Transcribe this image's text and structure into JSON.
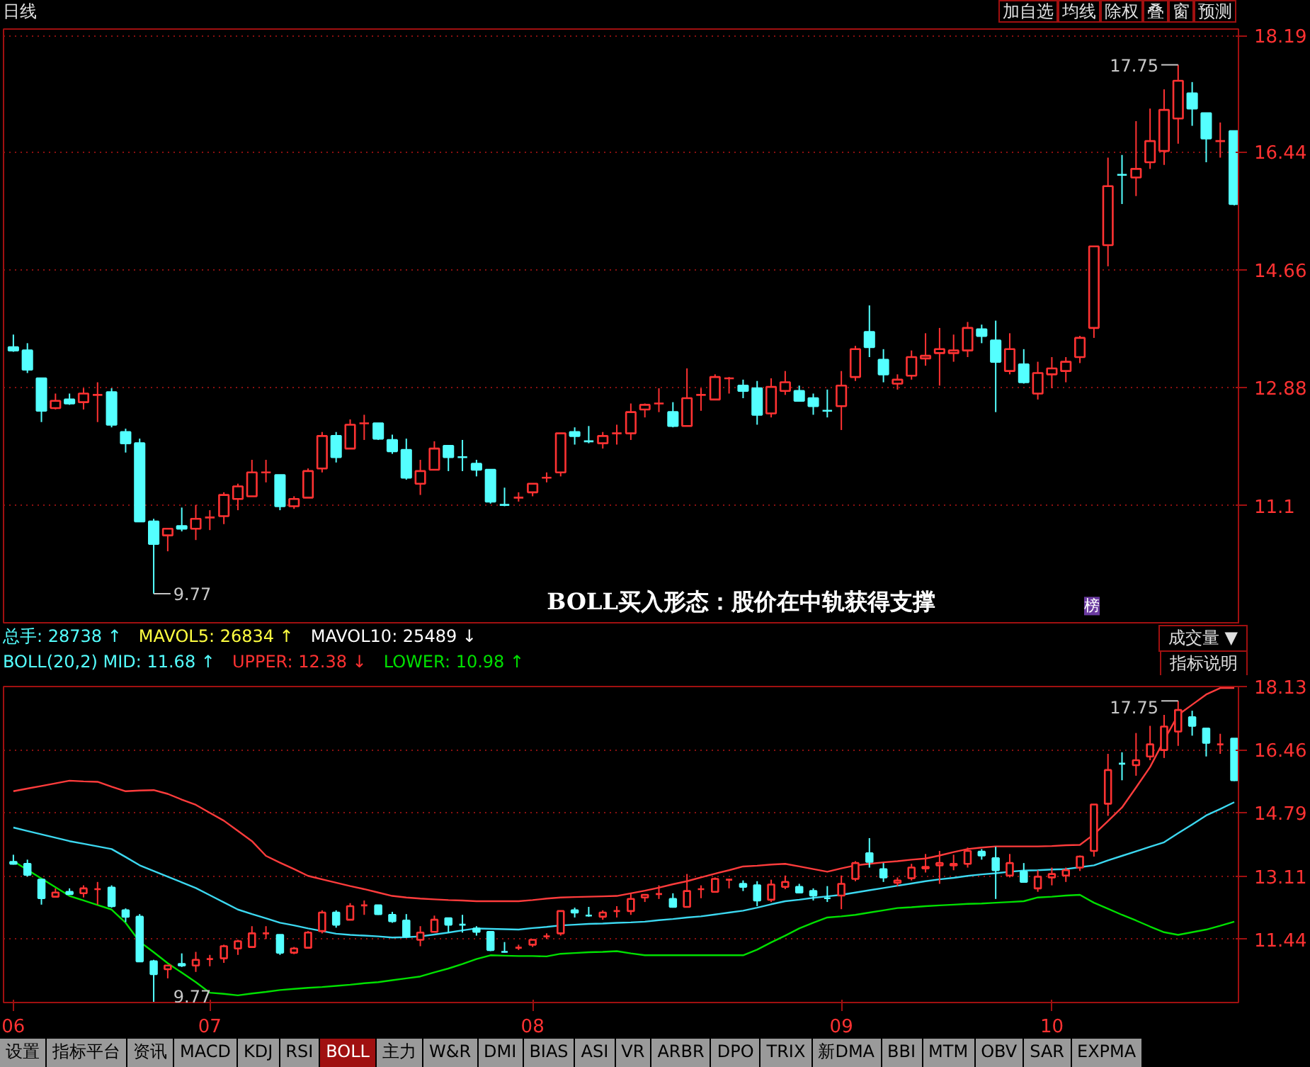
{
  "chart_data": [
    {
      "type": "candlestick",
      "categories": [
        null,
        null,
        null,
        null,
        null,
        null,
        null,
        null,
        null,
        null,
        null,
        null,
        null,
        null,
        null,
        null,
        null,
        null,
        null,
        null,
        null,
        null,
        null,
        null,
        null,
        null,
        null,
        null,
        null,
        null,
        null,
        null,
        null,
        null,
        null,
        null,
        null,
        null,
        null,
        null,
        null,
        null,
        null,
        null,
        null,
        null,
        null,
        null,
        null,
        null,
        null,
        null,
        null,
        null,
        null,
        null,
        null,
        null,
        null,
        null,
        null,
        null,
        null,
        null,
        null,
        null,
        null,
        null,
        null,
        null,
        null,
        null,
        null,
        null,
        null,
        null,
        null,
        null,
        null,
        null,
        null,
        null,
        null,
        null,
        null,
        null,
        null,
        null
      ],
      "ohlc": [
        [
          13.49,
          13.68,
          13.42,
          13.44
        ],
        [
          13.44,
          13.55,
          13.1,
          13.15
        ],
        [
          13.02,
          13.02,
          12.36,
          12.53
        ],
        [
          12.57,
          12.79,
          12.55,
          12.68
        ],
        [
          12.7,
          12.79,
          12.62,
          12.64
        ],
        [
          12.66,
          12.87,
          12.55,
          12.79
        ],
        [
          12.77,
          12.96,
          12.36,
          12.77
        ],
        [
          12.81,
          12.87,
          12.28,
          12.32
        ],
        [
          12.21,
          12.26,
          11.9,
          12.04
        ],
        [
          12.04,
          12.11,
          10.86,
          10.86
        ],
        [
          10.86,
          10.9,
          9.77,
          10.52
        ],
        [
          10.65,
          10.75,
          10.41,
          10.75
        ],
        [
          10.79,
          11.07,
          10.71,
          10.75
        ],
        [
          10.75,
          11.11,
          10.58,
          10.9
        ],
        [
          10.92,
          11.03,
          10.73,
          10.92
        ],
        [
          10.94,
          11.3,
          10.82,
          11.26
        ],
        [
          11.2,
          11.43,
          11.03,
          11.39
        ],
        [
          11.24,
          11.79,
          11.24,
          11.6
        ],
        [
          11.6,
          11.79,
          11.45,
          11.6
        ],
        [
          11.56,
          11.56,
          11.03,
          11.09
        ],
        [
          11.09,
          11.24,
          11.05,
          11.2
        ],
        [
          11.22,
          11.66,
          11.22,
          11.62
        ],
        [
          11.66,
          12.21,
          11.6,
          12.15
        ],
        [
          12.15,
          12.21,
          11.75,
          11.83
        ],
        [
          11.96,
          12.4,
          11.96,
          12.32
        ],
        [
          12.34,
          12.47,
          12.09,
          12.34
        ],
        [
          12.34,
          12.34,
          12.09,
          12.11
        ],
        [
          12.09,
          12.17,
          11.88,
          11.92
        ],
        [
          11.94,
          12.11,
          11.49,
          11.52
        ],
        [
          11.43,
          11.79,
          11.26,
          11.62
        ],
        [
          11.64,
          12.07,
          11.64,
          11.96
        ],
        [
          12.0,
          12.0,
          11.62,
          11.83
        ],
        [
          11.83,
          12.09,
          11.62,
          11.83
        ],
        [
          11.73,
          11.79,
          11.54,
          11.64
        ],
        [
          11.64,
          11.64,
          11.13,
          11.16
        ],
        [
          11.11,
          11.37,
          11.09,
          11.11
        ],
        [
          11.22,
          11.3,
          11.16,
          11.22
        ],
        [
          11.3,
          11.43,
          11.24,
          11.43
        ],
        [
          11.52,
          11.6,
          11.45,
          11.52
        ],
        [
          11.6,
          12.19,
          11.54,
          12.19
        ],
        [
          12.21,
          12.28,
          12.02,
          12.15
        ],
        [
          12.07,
          12.3,
          12.04,
          12.07
        ],
        [
          12.04,
          12.21,
          11.96,
          12.15
        ],
        [
          12.19,
          12.32,
          12.02,
          12.19
        ],
        [
          12.19,
          12.64,
          12.09,
          12.51
        ],
        [
          12.55,
          12.64,
          12.43,
          12.62
        ],
        [
          12.64,
          12.87,
          12.51,
          12.64
        ],
        [
          12.51,
          12.66,
          12.28,
          12.3
        ],
        [
          12.3,
          13.17,
          12.3,
          12.72
        ],
        [
          12.77,
          12.87,
          12.53,
          12.77
        ],
        [
          12.7,
          13.08,
          12.7,
          13.04
        ],
        [
          13.02,
          13.04,
          12.79,
          13.02
        ],
        [
          12.91,
          13.0,
          12.72,
          12.83
        ],
        [
          12.87,
          12.98,
          12.32,
          12.47
        ],
        [
          12.49,
          13.02,
          12.43,
          12.89
        ],
        [
          12.83,
          13.13,
          12.77,
          12.96
        ],
        [
          12.83,
          12.91,
          12.68,
          12.68
        ],
        [
          12.72,
          12.79,
          12.47,
          12.6
        ],
        [
          12.53,
          12.85,
          12.43,
          12.53
        ],
        [
          12.6,
          13.13,
          12.24,
          12.91
        ],
        [
          13.04,
          13.51,
          12.98,
          13.46
        ],
        [
          13.72,
          14.12,
          13.34,
          13.49
        ],
        [
          13.3,
          13.46,
          12.96,
          13.08
        ],
        [
          12.94,
          13.08,
          12.85,
          13.0
        ],
        [
          13.06,
          13.44,
          13.0,
          13.34
        ],
        [
          13.32,
          13.7,
          13.21,
          13.36
        ],
        [
          13.4,
          13.78,
          12.91,
          13.46
        ],
        [
          13.4,
          13.68,
          13.27,
          13.44
        ],
        [
          13.44,
          13.87,
          13.34,
          13.78
        ],
        [
          13.76,
          13.83,
          13.55,
          13.66
        ],
        [
          13.59,
          13.89,
          12.51,
          13.27
        ],
        [
          13.13,
          13.7,
          13.08,
          13.46
        ],
        [
          13.23,
          13.46,
          12.94,
          12.96
        ],
        [
          12.79,
          13.27,
          12.7,
          13.1
        ],
        [
          13.08,
          13.34,
          12.87,
          13.17
        ],
        [
          13.13,
          13.34,
          12.96,
          13.27
        ],
        [
          13.34,
          13.66,
          13.25,
          13.63
        ],
        [
          13.78,
          15.01,
          13.63,
          15.01
        ],
        [
          15.03,
          16.35,
          14.71,
          15.92
        ],
        [
          16.09,
          16.39,
          15.65,
          16.09
        ],
        [
          16.05,
          16.9,
          15.77,
          16.18
        ],
        [
          16.28,
          17.09,
          16.18,
          16.6
        ],
        [
          16.45,
          17.38,
          16.24,
          17.07
        ],
        [
          16.94,
          17.75,
          16.56,
          17.51
        ],
        [
          17.32,
          17.49,
          16.83,
          17.09
        ],
        [
          17.02,
          17.02,
          16.28,
          16.64
        ],
        [
          16.6,
          16.88,
          16.35,
          16.6
        ],
        [
          16.75,
          16.75,
          15.63,
          15.65
        ]
      ],
      "colors": [
        "#54ffff",
        "#54ffff",
        "#54ffff",
        "#ff3232",
        "#54ffff",
        "#ff3232",
        "#ff3232",
        "#54ffff",
        "#54ffff",
        "#54ffff",
        "#54ffff",
        "#ff3232",
        "#54ffff",
        "#ff3232",
        "#ff3232",
        "#ff3232",
        "#ff3232",
        "#ff3232",
        "#ff3232",
        "#54ffff",
        "#ff3232",
        "#ff3232",
        "#ff3232",
        "#54ffff",
        "#ff3232",
        "#ff3232",
        "#54ffff",
        "#54ffff",
        "#54ffff",
        "#ff3232",
        "#ff3232",
        "#54ffff",
        "#54ffff",
        "#54ffff",
        "#54ffff",
        "#54ffff",
        "#ff3232",
        "#ff3232",
        "#ff3232",
        "#ff3232",
        "#54ffff",
        "#54ffff",
        "#ff3232",
        "#ff3232",
        "#ff3232",
        "#ff3232",
        "#ff3232",
        "#54ffff",
        "#ff3232",
        "#ff3232",
        "#ff3232",
        "#ff3232",
        "#54ffff",
        "#54ffff",
        "#ff3232",
        "#ff3232",
        "#54ffff",
        "#54ffff",
        "#54ffff",
        "#ff3232",
        "#ff3232",
        "#54ffff",
        "#54ffff",
        "#ff3232",
        "#ff3232",
        "#ff3232",
        "#ff3232",
        "#ff3232",
        "#ff3232",
        "#54ffff",
        "#54ffff",
        "#ff3232",
        "#54ffff",
        "#ff3232",
        "#ff3232",
        "#ff3232",
        "#ff3232",
        "#ff3232",
        "#ff3232",
        "#54ffff",
        "#ff3232",
        "#ff3232",
        "#ff3232",
        "#ff3232",
        "#54ffff",
        "#54ffff",
        "#ff3232",
        "#54ffff"
      ],
      "ylim": [
        9.31,
        18.29
      ],
      "yticks": [
        11.1,
        12.88,
        14.66,
        16.44,
        18.19
      ],
      "grid": "y",
      "tick_labels": "y",
      "annotations": [
        "日线",
        "加自选",
        "均线",
        "除权",
        "叠",
        "窗",
        "预测",
        "BOLL买入形态：股价在中轨获得支撑",
        "榜",
        "9.77",
        "17.75"
      ]
    },
    {
      "type": "candlestick",
      "categories": [
        "06",
        null,
        null,
        null,
        null,
        null,
        null,
        null,
        null,
        null,
        null,
        null,
        null,
        null,
        "07",
        null,
        null,
        null,
        null,
        null,
        null,
        null,
        null,
        null,
        null,
        null,
        null,
        null,
        null,
        null,
        null,
        null,
        null,
        null,
        null,
        null,
        null,
        "08",
        null,
        null,
        null,
        null,
        null,
        null,
        null,
        null,
        null,
        null,
        null,
        null,
        null,
        null,
        null,
        null,
        null,
        null,
        null,
        null,
        null,
        "09",
        null,
        null,
        null,
        null,
        null,
        null,
        null,
        null,
        null,
        null,
        null,
        null,
        null,
        null,
        "10",
        null,
        null,
        null,
        null,
        null,
        null,
        null,
        null,
        null,
        null,
        null,
        null,
        null
      ],
      "ohlc": [
        [
          13.49,
          13.68,
          13.42,
          13.44
        ],
        [
          13.44,
          13.55,
          13.1,
          13.15
        ],
        [
          13.02,
          13.02,
          12.36,
          12.53
        ],
        [
          12.57,
          12.79,
          12.55,
          12.68
        ],
        [
          12.7,
          12.79,
          12.62,
          12.64
        ],
        [
          12.66,
          12.87,
          12.55,
          12.79
        ],
        [
          12.77,
          12.96,
          12.36,
          12.77
        ],
        [
          12.81,
          12.87,
          12.28,
          12.32
        ],
        [
          12.21,
          12.26,
          11.9,
          12.04
        ],
        [
          12.04,
          12.11,
          10.86,
          10.86
        ],
        [
          10.86,
          10.9,
          9.77,
          10.52
        ],
        [
          10.65,
          10.75,
          10.41,
          10.75
        ],
        [
          10.79,
          11.07,
          10.71,
          10.75
        ],
        [
          10.75,
          11.11,
          10.58,
          10.9
        ],
        [
          10.92,
          11.03,
          10.73,
          10.92
        ],
        [
          10.94,
          11.3,
          10.82,
          11.26
        ],
        [
          11.2,
          11.43,
          11.03,
          11.39
        ],
        [
          11.24,
          11.79,
          11.24,
          11.6
        ],
        [
          11.6,
          11.79,
          11.45,
          11.6
        ],
        [
          11.56,
          11.56,
          11.03,
          11.09
        ],
        [
          11.09,
          11.24,
          11.05,
          11.2
        ],
        [
          11.22,
          11.66,
          11.22,
          11.62
        ],
        [
          11.66,
          12.21,
          11.6,
          12.15
        ],
        [
          12.15,
          12.21,
          11.75,
          11.83
        ],
        [
          11.96,
          12.4,
          11.96,
          12.32
        ],
        [
          12.34,
          12.47,
          12.09,
          12.34
        ],
        [
          12.34,
          12.34,
          12.09,
          12.11
        ],
        [
          12.09,
          12.17,
          11.88,
          11.92
        ],
        [
          11.94,
          12.11,
          11.49,
          11.52
        ],
        [
          11.43,
          11.79,
          11.26,
          11.62
        ],
        [
          11.64,
          12.07,
          11.64,
          11.96
        ],
        [
          12.0,
          12.0,
          11.62,
          11.83
        ],
        [
          11.83,
          12.09,
          11.62,
          11.83
        ],
        [
          11.73,
          11.79,
          11.54,
          11.64
        ],
        [
          11.64,
          11.64,
          11.13,
          11.16
        ],
        [
          11.11,
          11.37,
          11.09,
          11.11
        ],
        [
          11.22,
          11.3,
          11.16,
          11.22
        ],
        [
          11.3,
          11.43,
          11.24,
          11.43
        ],
        [
          11.52,
          11.6,
          11.45,
          11.52
        ],
        [
          11.6,
          12.19,
          11.54,
          12.19
        ],
        [
          12.21,
          12.28,
          12.02,
          12.15
        ],
        [
          12.07,
          12.3,
          12.04,
          12.07
        ],
        [
          12.04,
          12.21,
          11.96,
          12.15
        ],
        [
          12.19,
          12.32,
          12.02,
          12.19
        ],
        [
          12.19,
          12.64,
          12.09,
          12.51
        ],
        [
          12.55,
          12.64,
          12.43,
          12.62
        ],
        [
          12.64,
          12.87,
          12.51,
          12.64
        ],
        [
          12.51,
          12.66,
          12.28,
          12.3
        ],
        [
          12.3,
          13.17,
          12.3,
          12.72
        ],
        [
          12.77,
          12.87,
          12.53,
          12.77
        ],
        [
          12.7,
          13.08,
          12.7,
          13.04
        ],
        [
          13.02,
          13.04,
          12.79,
          13.02
        ],
        [
          12.91,
          13.0,
          12.72,
          12.83
        ],
        [
          12.87,
          12.98,
          12.32,
          12.47
        ],
        [
          12.49,
          13.02,
          12.43,
          12.89
        ],
        [
          12.83,
          13.13,
          12.77,
          12.96
        ],
        [
          12.83,
          12.91,
          12.68,
          12.68
        ],
        [
          12.72,
          12.79,
          12.47,
          12.6
        ],
        [
          12.53,
          12.85,
          12.43,
          12.53
        ],
        [
          12.6,
          13.13,
          12.24,
          12.91
        ],
        [
          13.04,
          13.51,
          12.98,
          13.46
        ],
        [
          13.72,
          14.12,
          13.34,
          13.49
        ],
        [
          13.3,
          13.46,
          12.96,
          13.08
        ],
        [
          12.94,
          13.08,
          12.85,
          13.0
        ],
        [
          13.06,
          13.44,
          13.0,
          13.34
        ],
        [
          13.32,
          13.7,
          13.21,
          13.36
        ],
        [
          13.4,
          13.78,
          12.91,
          13.46
        ],
        [
          13.4,
          13.68,
          13.27,
          13.44
        ],
        [
          13.44,
          13.87,
          13.34,
          13.78
        ],
        [
          13.76,
          13.83,
          13.55,
          13.66
        ],
        [
          13.59,
          13.89,
          12.51,
          13.27
        ],
        [
          13.13,
          13.7,
          13.08,
          13.46
        ],
        [
          13.23,
          13.46,
          12.94,
          12.96
        ],
        [
          12.79,
          13.27,
          12.7,
          13.1
        ],
        [
          13.08,
          13.34,
          12.87,
          13.17
        ],
        [
          13.13,
          13.34,
          12.96,
          13.27
        ],
        [
          13.34,
          13.66,
          13.25,
          13.63
        ],
        [
          13.78,
          15.01,
          13.63,
          15.01
        ],
        [
          15.03,
          16.35,
          14.71,
          15.92
        ],
        [
          16.09,
          16.39,
          15.65,
          16.09
        ],
        [
          16.05,
          16.9,
          15.77,
          16.18
        ],
        [
          16.28,
          17.09,
          16.18,
          16.6
        ],
        [
          16.45,
          17.38,
          16.24,
          17.07
        ],
        [
          16.94,
          17.75,
          16.56,
          17.51
        ],
        [
          17.32,
          17.49,
          16.83,
          17.09
        ],
        [
          17.02,
          17.02,
          16.28,
          16.64
        ],
        [
          16.6,
          16.88,
          16.35,
          16.6
        ],
        [
          16.75,
          16.75,
          15.63,
          15.65
        ]
      ],
      "colors": [
        "#54ffff",
        "#54ffff",
        "#54ffff",
        "#ff3232",
        "#54ffff",
        "#ff3232",
        "#ff3232",
        "#54ffff",
        "#54ffff",
        "#54ffff",
        "#54ffff",
        "#ff3232",
        "#54ffff",
        "#ff3232",
        "#ff3232",
        "#ff3232",
        "#ff3232",
        "#ff3232",
        "#ff3232",
        "#54ffff",
        "#ff3232",
        "#ff3232",
        "#ff3232",
        "#54ffff",
        "#ff3232",
        "#ff3232",
        "#54ffff",
        "#54ffff",
        "#54ffff",
        "#ff3232",
        "#ff3232",
        "#54ffff",
        "#54ffff",
        "#54ffff",
        "#54ffff",
        "#54ffff",
        "#ff3232",
        "#ff3232",
        "#ff3232",
        "#ff3232",
        "#54ffff",
        "#54ffff",
        "#ff3232",
        "#ff3232",
        "#ff3232",
        "#ff3232",
        "#ff3232",
        "#54ffff",
        "#ff3232",
        "#ff3232",
        "#ff3232",
        "#ff3232",
        "#54ffff",
        "#54ffff",
        "#ff3232",
        "#ff3232",
        "#54ffff",
        "#54ffff",
        "#54ffff",
        "#ff3232",
        "#ff3232",
        "#54ffff",
        "#54ffff",
        "#ff3232",
        "#ff3232",
        "#ff3232",
        "#ff3232",
        "#ff3232",
        "#ff3232",
        "#54ffff",
        "#54ffff",
        "#ff3232",
        "#54ffff",
        "#ff3232",
        "#ff3232",
        "#ff3232",
        "#ff3232",
        "#ff3232",
        "#ff3232",
        "#54ffff",
        "#ff3232",
        "#ff3232",
        "#ff3232",
        "#ff3232",
        "#54ffff",
        "#54ffff",
        "#ff3232",
        "#54ffff"
      ],
      "series": [
        {
          "type": "line",
          "color": "#ff3c3c",
          "values": [
            15.36,
            15.43,
            15.5,
            15.57,
            15.64,
            15.62,
            15.61,
            15.48,
            15.36,
            15.38,
            15.39,
            15.29,
            15.14,
            15.0,
            14.79,
            14.58,
            14.31,
            14.04,
            13.65,
            13.47,
            13.3,
            13.12,
            13.03,
            12.94,
            12.85,
            12.77,
            12.68,
            12.59,
            12.55,
            12.52,
            12.5,
            12.48,
            12.47,
            12.45,
            12.45,
            12.45,
            12.45,
            12.48,
            12.52,
            12.55,
            12.56,
            12.57,
            12.58,
            12.59,
            12.66,
            12.73,
            12.81,
            12.9,
            12.98,
            13.08,
            13.18,
            13.27,
            13.37,
            13.39,
            13.42,
            13.44,
            13.37,
            13.3,
            13.23,
            13.32,
            13.4,
            13.44,
            13.48,
            13.51,
            13.55,
            13.58,
            13.66,
            13.75,
            13.83,
            13.87,
            13.9,
            13.9,
            13.9,
            13.9,
            13.91,
            13.93,
            13.94,
            14.22,
            14.57,
            14.93,
            15.46,
            16.0,
            16.71,
            17.38,
            17.65,
            17.92,
            18.09,
            18.09
          ]
        },
        {
          "type": "line",
          "color": "#3cd8f0",
          "values": [
            14.4,
            14.31,
            14.22,
            14.13,
            14.04,
            13.97,
            13.9,
            13.83,
            13.62,
            13.4,
            13.25,
            13.1,
            12.95,
            12.8,
            12.61,
            12.42,
            12.23,
            12.11,
            12.0,
            11.88,
            11.81,
            11.73,
            11.66,
            11.59,
            11.56,
            11.54,
            11.52,
            11.49,
            11.5,
            11.52,
            11.57,
            11.62,
            11.68,
            11.73,
            11.72,
            11.71,
            11.7,
            11.74,
            11.77,
            11.81,
            11.83,
            11.85,
            11.86,
            11.88,
            11.89,
            11.91,
            11.95,
            11.98,
            12.02,
            12.05,
            12.1,
            12.15,
            12.2,
            12.28,
            12.37,
            12.45,
            12.49,
            12.54,
            12.58,
            12.62,
            12.68,
            12.74,
            12.8,
            12.86,
            12.92,
            12.98,
            13.03,
            13.07,
            13.12,
            13.16,
            13.19,
            13.23,
            13.26,
            13.27,
            13.29,
            13.3,
            13.35,
            13.4,
            13.53,
            13.65,
            13.77,
            13.89,
            14.01,
            14.25,
            14.48,
            14.72,
            14.89,
            15.07
          ]
        },
        {
          "type": "line",
          "color": "#00e000",
          "values": [
            13.51,
            13.28,
            13.05,
            12.82,
            12.59,
            12.47,
            12.35,
            12.23,
            11.88,
            11.38,
            11.1,
            10.81,
            10.56,
            10.31,
            10.03,
            10.0,
            9.96,
            10.01,
            10.05,
            10.1,
            10.13,
            10.16,
            10.18,
            10.21,
            10.24,
            10.28,
            10.31,
            10.36,
            10.41,
            10.46,
            10.57,
            10.67,
            10.79,
            10.92,
            11.02,
            11.01,
            11.0,
            11.0,
            10.99,
            11.06,
            11.08,
            11.1,
            11.11,
            11.13,
            11.07,
            11.02,
            11.02,
            11.02,
            11.02,
            11.02,
            11.02,
            11.02,
            11.02,
            11.17,
            11.36,
            11.54,
            11.73,
            11.88,
            12.02,
            12.05,
            12.09,
            12.15,
            12.21,
            12.27,
            12.29,
            12.32,
            12.34,
            12.36,
            12.38,
            12.39,
            12.41,
            12.43,
            12.45,
            12.55,
            12.57,
            12.6,
            12.62,
            12.41,
            12.25,
            12.09,
            11.94,
            11.78,
            11.63,
            11.56,
            11.63,
            11.7,
            11.8,
            11.91
          ]
        }
      ],
      "ylim": [
        9.77,
        18.13
      ],
      "yticks": [
        11.44,
        13.11,
        14.79,
        16.46,
        18.13
      ],
      "grid": "y",
      "annotations": [
        "总手: 28738 ↑",
        "MAVOL5: 26834 ↑",
        "MAVOL10: 25489 ↓",
        "BOLL(20,2) MID: 11.68 ↑",
        "UPPER: 12.38 ↓",
        "LOWER: 10.98 ↑",
        "成交量 ▼",
        "指标说明",
        "9.77",
        "17.75",
        "设置",
        "指标平台",
        "资讯",
        "MACD",
        "KDJ",
        "RSI",
        "BOLL",
        "主力",
        "W&R",
        "DMI",
        "BIAS",
        "ASI",
        "VR",
        "ARBR",
        "DPO",
        "TRIX",
        "新DMA",
        "BBI",
        "MTM",
        "OBV",
        "SAR",
        "EXPMA"
      ]
    }
  ]
}
